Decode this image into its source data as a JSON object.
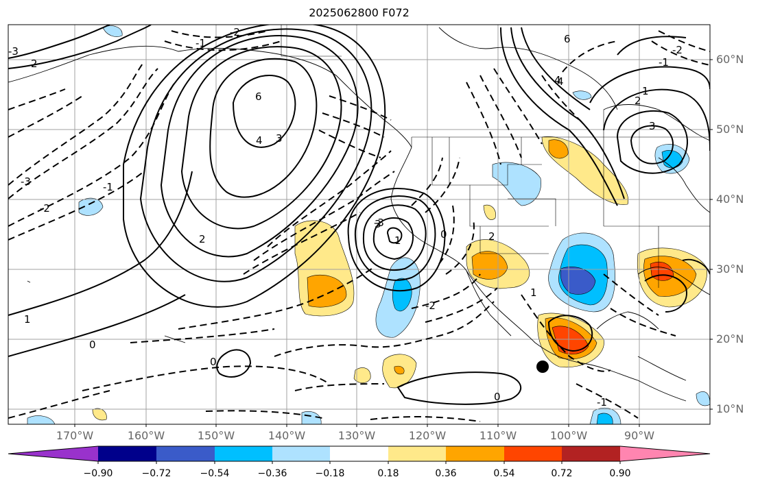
{
  "title": "2025062800 F072",
  "lat_labels": [
    "60°N",
    "50°N",
    "40°N",
    "30°N",
    "20°N",
    "10°N"
  ],
  "lon_labels": [
    "170°W",
    "160°W",
    "150°W",
    "140°W",
    "130°W",
    "120°W",
    "110°W",
    "100°W",
    "90°W"
  ],
  "colorbar": {
    "colors": [
      "#9932cc",
      "#00008b",
      "#3a5bc9",
      "#00bfff",
      "#aee2ff",
      "#ffffff",
      "#ffe98a",
      "#ffa500",
      "#ff4500",
      "#b22222",
      "#ff85b0"
    ],
    "tick_labels": [
      "−0.90",
      "−0.72",
      "−0.54",
      "−0.36",
      "−0.18",
      "0.18",
      "0.36",
      "0.54",
      "0.72",
      "0.90"
    ]
  },
  "contour_labels": [
    "6",
    "4",
    "3",
    "2",
    "1",
    "0",
    "-1",
    "-2",
    "-3",
    "2",
    "1",
    "0",
    "-1",
    "-2",
    "-3",
    "6",
    "4",
    "3",
    "2",
    "1",
    "0",
    "-1",
    "-2",
    "0",
    "1",
    "2",
    "3",
    "-1",
    "-2",
    "-3",
    "4"
  ],
  "marker_icon": "storm-center-dot"
}
